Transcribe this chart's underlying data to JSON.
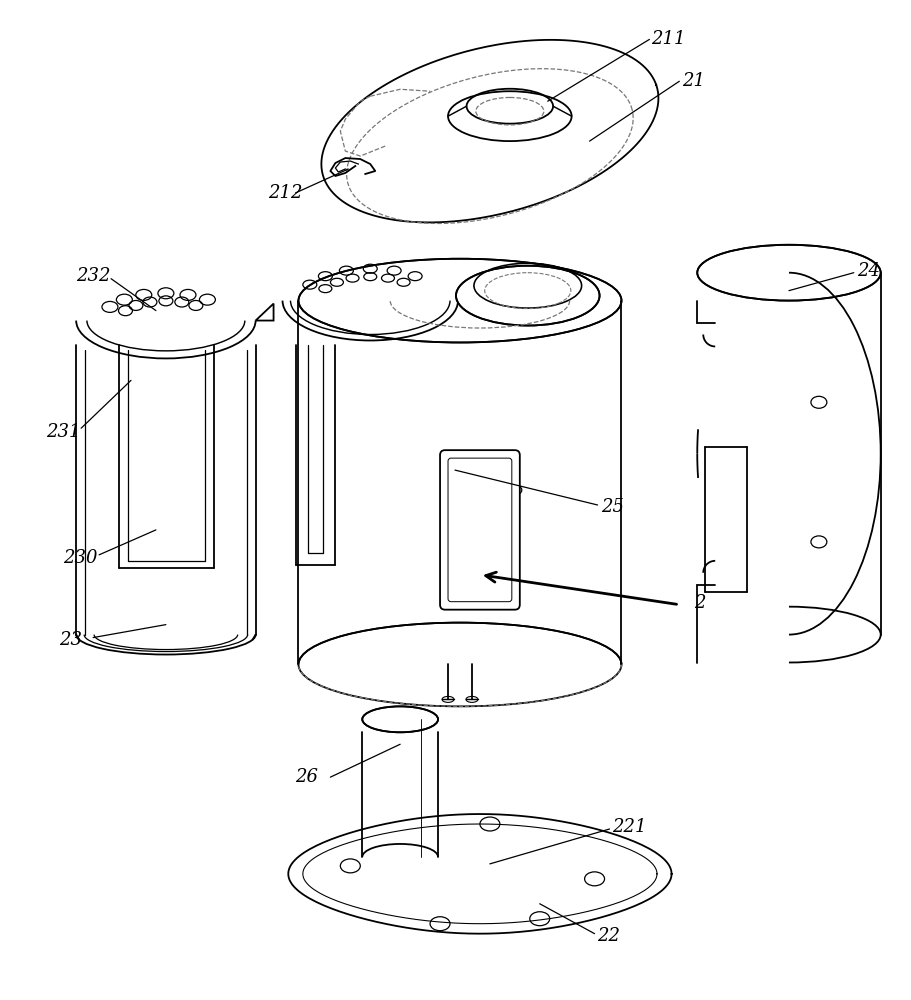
{
  "bg_color": "#ffffff",
  "line_color": "#000000",
  "dashed_color": "#777777",
  "label_fs": 13,
  "lw": 1.3
}
